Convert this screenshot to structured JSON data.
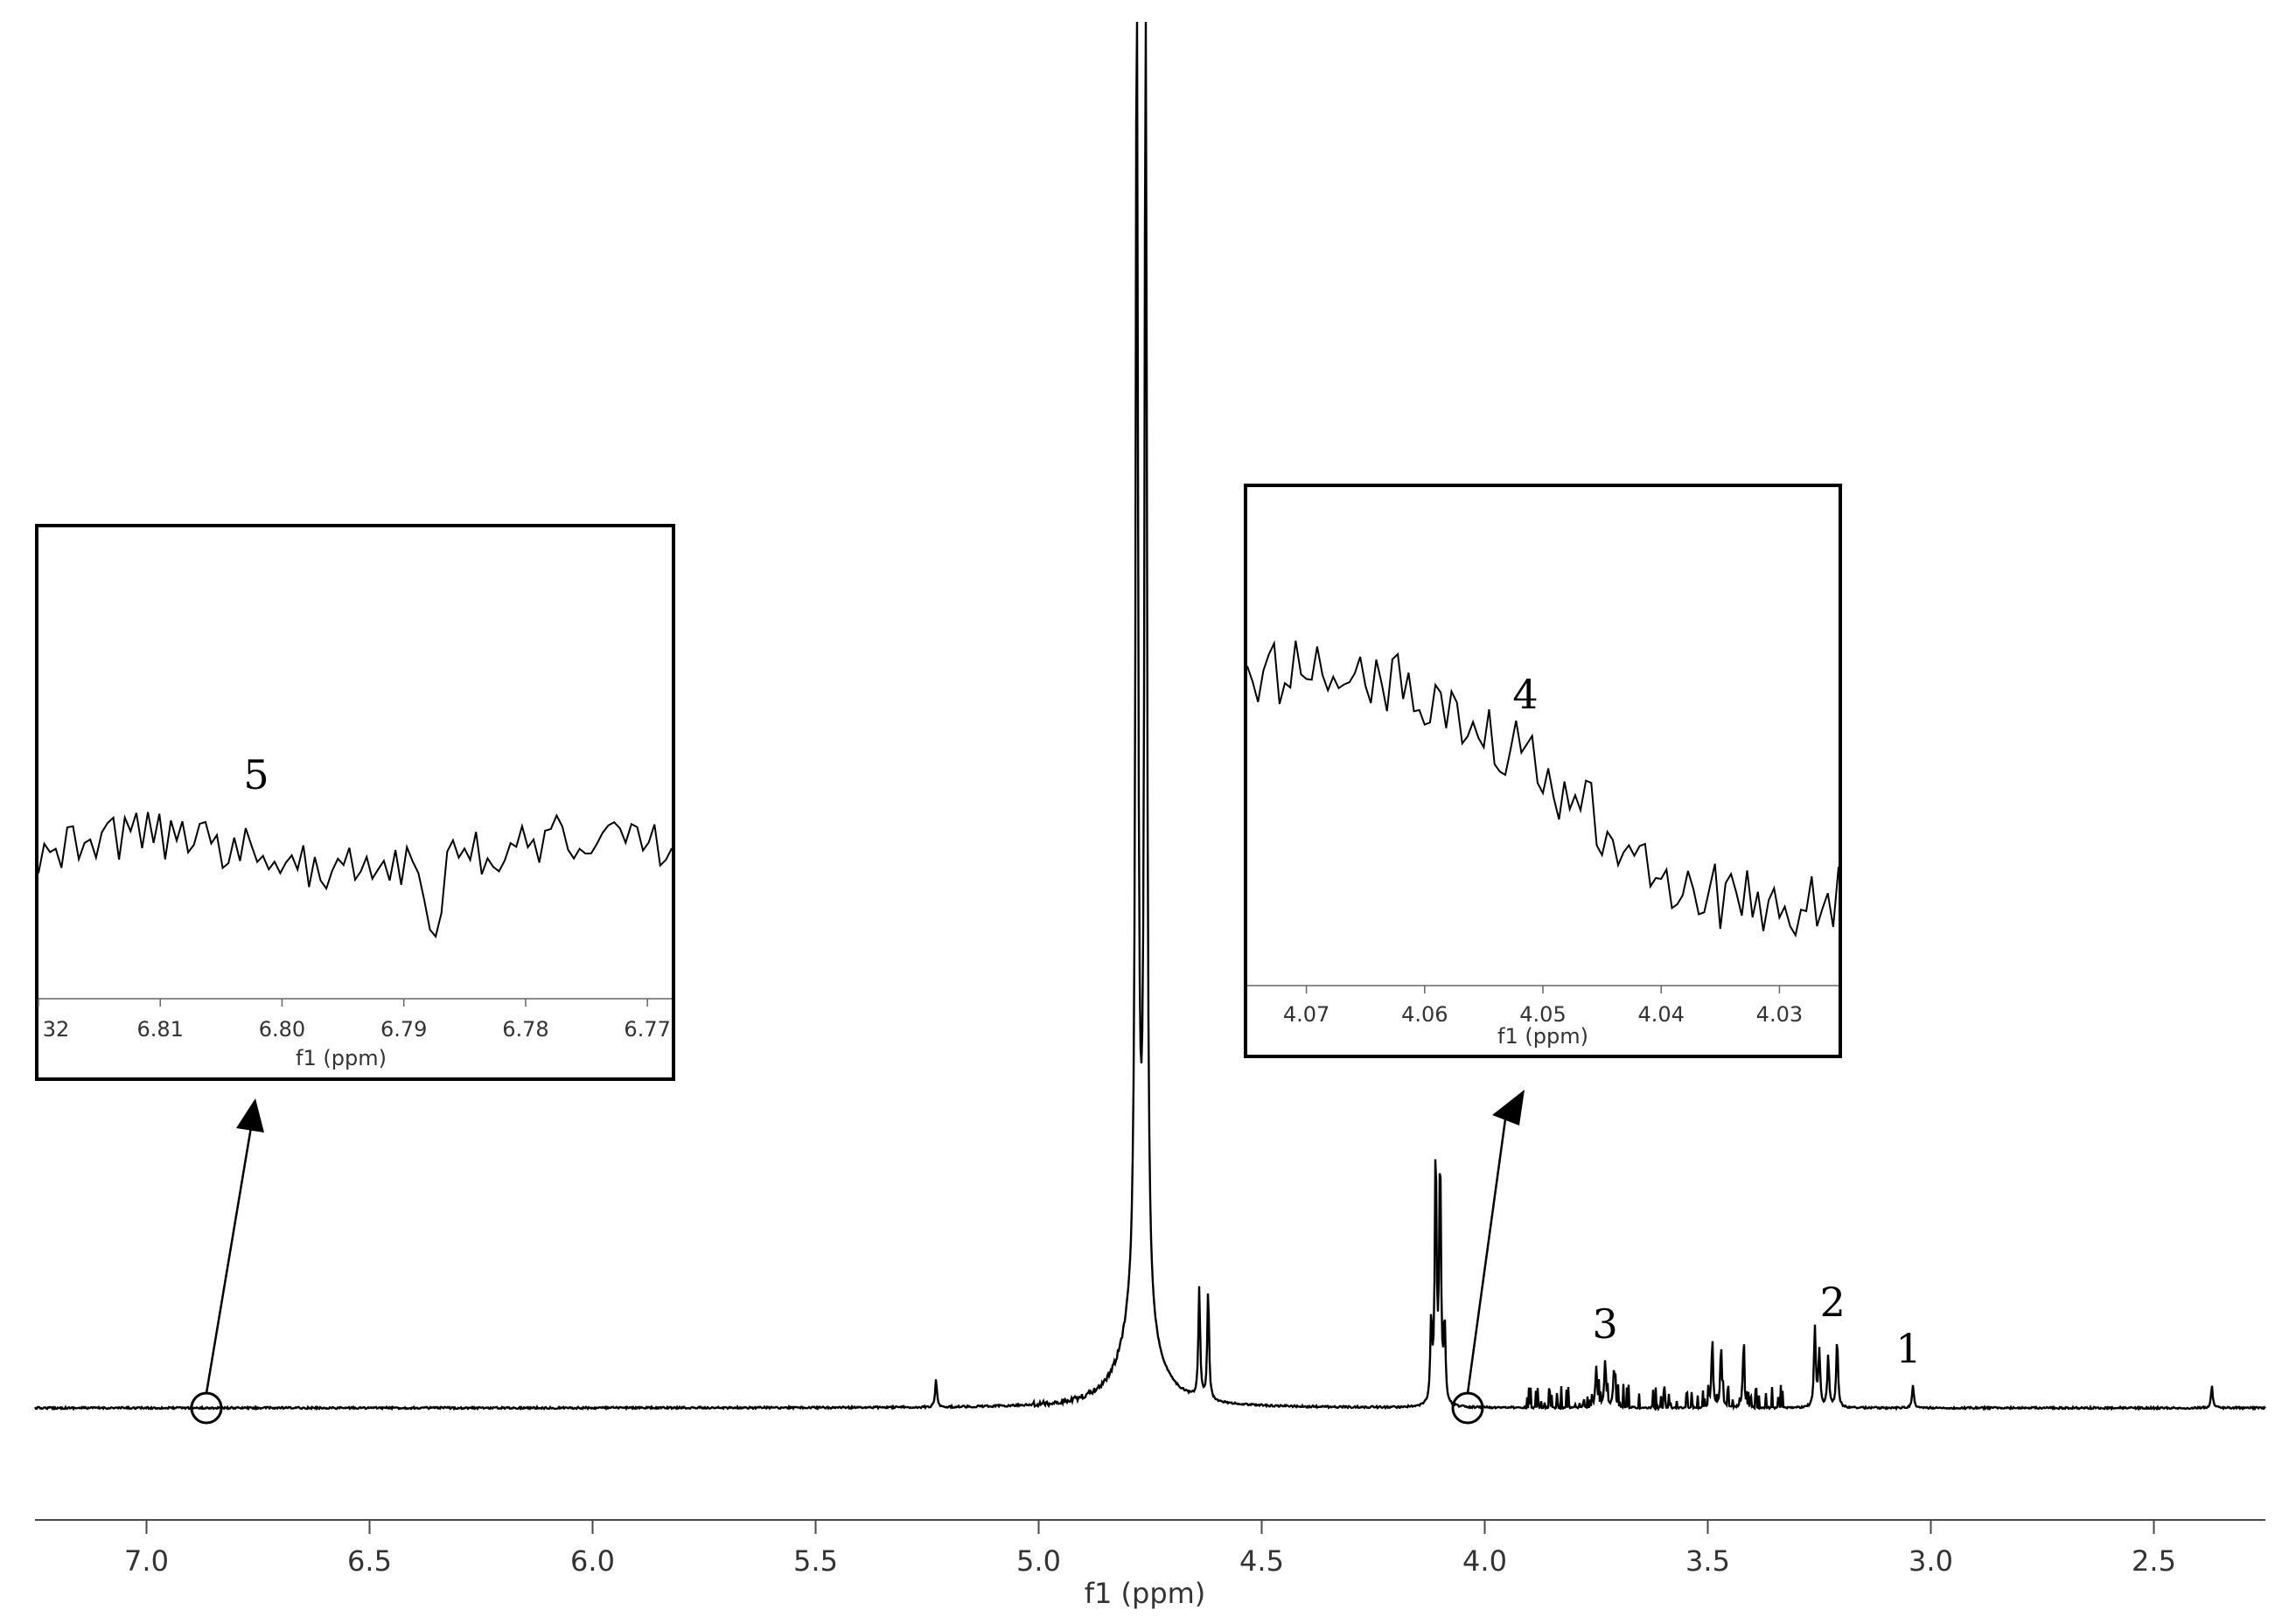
{
  "chart_data": {
    "type": "line",
    "title": "",
    "main": {
      "xlabel": "f1 (ppm)",
      "xlim": [
        7.25,
        2.25
      ],
      "xticks": [
        "7.0",
        "6.5",
        "6.0",
        "5.5",
        "5.0",
        "4.5",
        "4.0",
        "3.5",
        "3.0",
        "2.5"
      ],
      "annotations": [
        {
          "label": "1",
          "x": 3.05
        },
        {
          "label": "2",
          "x": 3.22
        },
        {
          "label": "3",
          "x": 3.73
        },
        {
          "label": "4",
          "x": 4.05
        },
        {
          "label": "5",
          "x": 6.8
        }
      ],
      "peaks": [
        {
          "x": 4.78,
          "height": 100
        },
        {
          "x": 4.76,
          "height": 100
        },
        {
          "x": 4.11,
          "height": 18.5
        },
        {
          "x": 4.1,
          "height": 18
        },
        {
          "x": 4.12,
          "height": 6
        },
        {
          "x": 4.09,
          "height": 5.8
        },
        {
          "x": 4.64,
          "height": 8
        },
        {
          "x": 4.62,
          "height": 8
        },
        {
          "x": 5.23,
          "height": 2
        },
        {
          "x": 3.73,
          "height": 3.5
        },
        {
          "x": 3.71,
          "height": 3.0
        },
        {
          "x": 3.75,
          "height": 3.0
        },
        {
          "x": 3.49,
          "height": 4.5
        },
        {
          "x": 3.47,
          "height": 4.0
        },
        {
          "x": 3.42,
          "height": 4.0
        },
        {
          "x": 3.26,
          "height": 5.8
        },
        {
          "x": 3.25,
          "height": 4.0
        },
        {
          "x": 3.23,
          "height": 3.8
        },
        {
          "x": 3.21,
          "height": 5.0
        },
        {
          "x": 3.04,
          "height": 1.6
        },
        {
          "x": 2.37,
          "height": 1.6
        }
      ]
    },
    "inset_left": {
      "xlabel": "f1 (ppm)",
      "xlim": [
        6.82,
        6.768
      ],
      "xticks": [
        "32",
        "6.81",
        "6.80",
        "6.79",
        "6.78",
        "6.77"
      ],
      "annotation": "5",
      "source_x": 6.88
    },
    "inset_right": {
      "xlabel": "f1 (ppm)",
      "xlim": [
        4.075,
        4.025
      ],
      "xticks": [
        "4.07",
        "4.06",
        "4.05",
        "4.04",
        "4.03"
      ],
      "annotation": "4",
      "source_x": 4.06
    }
  }
}
